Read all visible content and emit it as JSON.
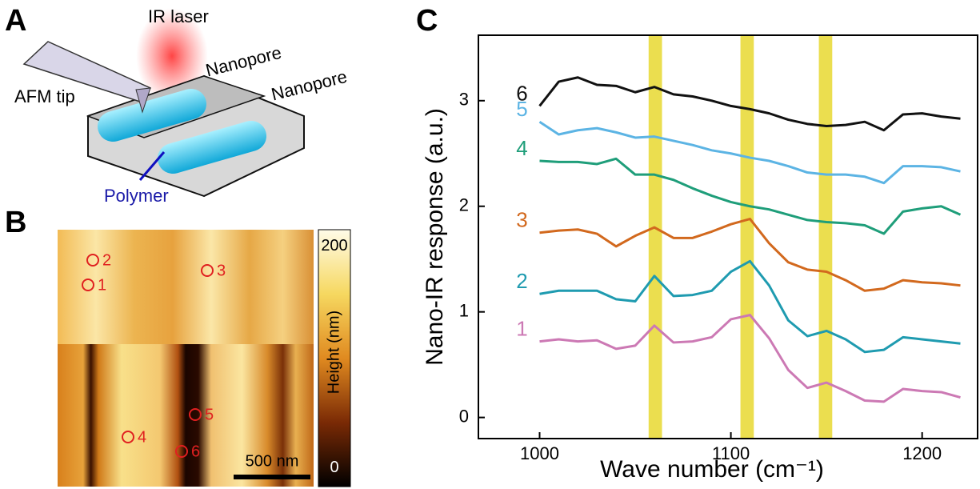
{
  "panel_a": {
    "label": "A",
    "ir_laser": "IR laser",
    "nanopore_1": "Nanopore",
    "nanopore_2": "Nanopore",
    "afm_tip": "AFM tip",
    "polymer": "Polymer"
  },
  "panel_b": {
    "label": "B",
    "markers": [
      "1",
      "2",
      "3",
      "4",
      "5",
      "6"
    ],
    "colorbar_lim": [
      -17,
      215
    ],
    "colorbar_ticks": [
      0,
      200
    ],
    "colorbar_label": "Height (nm)",
    "scale_bar": "500 nm"
  },
  "chart_data": {
    "type": "line",
    "panel_label": "C",
    "x_label": "Wave number (cm⁻¹)",
    "y_label": "Nano-IR response (a.u.)",
    "x": [
      1000,
      1010,
      1020,
      1030,
      1040,
      1050,
      1060,
      1070,
      1080,
      1090,
      1100,
      1110,
      1120,
      1130,
      1140,
      1150,
      1160,
      1170,
      1180,
      1190,
      1200,
      1210,
      1220
    ],
    "series": [
      {
        "name": "1",
        "color": "#cc79b4",
        "values": [
          0.72,
          0.74,
          0.72,
          0.73,
          0.65,
          0.68,
          0.87,
          0.71,
          0.72,
          0.76,
          0.93,
          0.97,
          0.75,
          0.45,
          0.28,
          0.33,
          0.25,
          0.16,
          0.15,
          0.27,
          0.25,
          0.24,
          0.19
        ]
      },
      {
        "name": "2",
        "color": "#1f9bb0",
        "values": [
          1.17,
          1.2,
          1.2,
          1.2,
          1.12,
          1.1,
          1.34,
          1.15,
          1.16,
          1.2,
          1.38,
          1.48,
          1.25,
          0.92,
          0.77,
          0.82,
          0.74,
          0.62,
          0.64,
          0.76,
          0.74,
          0.72,
          0.7
        ]
      },
      {
        "name": "3",
        "color": "#d2691e",
        "values": [
          1.75,
          1.77,
          1.78,
          1.74,
          1.62,
          1.72,
          1.8,
          1.7,
          1.7,
          1.76,
          1.83,
          1.88,
          1.65,
          1.47,
          1.4,
          1.38,
          1.3,
          1.2,
          1.22,
          1.3,
          1.28,
          1.27,
          1.25
        ]
      },
      {
        "name": "4",
        "color": "#1f9e7a",
        "values": [
          2.43,
          2.42,
          2.42,
          2.4,
          2.45,
          2.3,
          2.3,
          2.25,
          2.17,
          2.1,
          2.04,
          2.0,
          1.97,
          1.92,
          1.87,
          1.85,
          1.84,
          1.82,
          1.74,
          1.95,
          1.98,
          2.0,
          1.92
        ]
      },
      {
        "name": "5",
        "color": "#5cb4e4",
        "values": [
          2.8,
          2.68,
          2.72,
          2.74,
          2.7,
          2.65,
          2.66,
          2.62,
          2.58,
          2.53,
          2.5,
          2.46,
          2.43,
          2.38,
          2.32,
          2.3,
          2.3,
          2.28,
          2.22,
          2.38,
          2.38,
          2.37,
          2.33
        ]
      },
      {
        "name": "6",
        "color": "#111111",
        "values": [
          2.95,
          3.18,
          3.22,
          3.15,
          3.14,
          3.08,
          3.13,
          3.06,
          3.04,
          3.0,
          2.95,
          2.92,
          2.88,
          2.82,
          2.78,
          2.76,
          2.77,
          2.8,
          2.72,
          2.87,
          2.88,
          2.85,
          2.83
        ]
      }
    ],
    "highlights": [
      {
        "from": 1057,
        "to": 1064
      },
      {
        "from": 1105,
        "to": 1112
      },
      {
        "from": 1146,
        "to": 1153
      }
    ],
    "highlight_color": "#e8d830",
    "xlim": [
      968,
      1229
    ],
    "ylim": [
      -0.2,
      3.62
    ],
    "xticks": [
      1000,
      1100,
      1200
    ],
    "yticks": [
      0,
      1,
      2,
      3
    ]
  }
}
